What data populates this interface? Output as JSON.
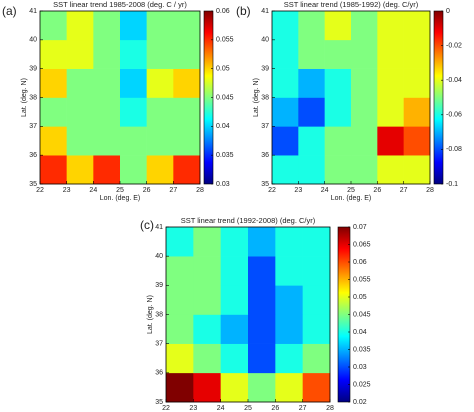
{
  "chart_data": [
    {
      "type": "heatmap",
      "panel_label": "(a)",
      "title": "SST linear trend 1985-2008 (deg. C / yr)",
      "xlabel": "Lon. (deg. E)",
      "ylabel": "Lat. (deg. N)",
      "x": [
        22.5,
        23.5,
        24.5,
        25.5,
        26.5,
        27.5
      ],
      "y": [
        35.5,
        36.5,
        37.5,
        38.5,
        39.5,
        40.5
      ],
      "z": [
        [
          0.055,
          0.05,
          0.055,
          0.045,
          0.05,
          0.055
        ],
        [
          0.05,
          0.045,
          0.045,
          0.045,
          0.045,
          0.045
        ],
        [
          0.045,
          0.045,
          0.045,
          0.042,
          0.045,
          0.045
        ],
        [
          0.05,
          0.045,
          0.045,
          0.04,
          0.048,
          0.05
        ],
        [
          0.048,
          0.048,
          0.045,
          0.042,
          0.045,
          0.045
        ],
        [
          0.045,
          0.048,
          0.045,
          0.04,
          0.045,
          0.045
        ]
      ],
      "xlim": [
        22,
        28
      ],
      "ylim": [
        35,
        41
      ],
      "xticks": [
        22,
        23,
        24,
        25,
        26,
        27,
        28
      ],
      "yticks": [
        35,
        36,
        37,
        38,
        39,
        40,
        41
      ],
      "clim": [
        0.03,
        0.06
      ],
      "cticks": [
        0.03,
        0.035,
        0.04,
        0.045,
        0.05,
        0.055,
        0.06
      ],
      "colormap": "jet"
    },
    {
      "type": "heatmap",
      "panel_label": "(b)",
      "title": "SST linear trend (1985-1992) (deg. C/yr)",
      "xlabel": "Lon. (deg. E)",
      "ylabel": "Lat. (deg. N)",
      "x": [
        22.5,
        23.5,
        24.5,
        25.5,
        26.5,
        27.5
      ],
      "y": [
        35.5,
        36.5,
        37.5,
        38.5,
        39.5,
        40.5
      ],
      "z": [
        [
          -0.06,
          -0.06,
          -0.05,
          -0.05,
          -0.04,
          -0.04
        ],
        [
          -0.08,
          -0.06,
          -0.05,
          -0.05,
          -0.01,
          -0.02
        ],
        [
          -0.07,
          -0.08,
          -0.06,
          -0.05,
          -0.04,
          -0.03
        ],
        [
          -0.06,
          -0.07,
          -0.06,
          -0.05,
          -0.04,
          -0.04
        ],
        [
          -0.06,
          -0.05,
          -0.05,
          -0.05,
          -0.04,
          -0.04
        ],
        [
          -0.06,
          -0.05,
          -0.04,
          -0.05,
          -0.04,
          -0.04
        ]
      ],
      "xlim": [
        22,
        28
      ],
      "ylim": [
        35,
        41
      ],
      "xticks": [
        22,
        23,
        24,
        25,
        26,
        27,
        28
      ],
      "yticks": [
        35,
        36,
        37,
        38,
        39,
        40,
        41
      ],
      "clim": [
        -0.1,
        0
      ],
      "cticks": [
        -0.1,
        -0.08,
        -0.06,
        -0.04,
        -0.02,
        0
      ],
      "colormap": "jet"
    },
    {
      "type": "heatmap",
      "panel_label": "(c)",
      "title": "SST linear trend (1992-2008) (deg. C/yr)",
      "xlabel": "Lon. (deg. E)",
      "ylabel": "Lat. (deg. N)",
      "x": [
        22.5,
        23.5,
        24.5,
        25.5,
        26.5,
        27.5
      ],
      "y": [
        35.5,
        36.5,
        37.5,
        38.5,
        39.5,
        40.5
      ],
      "z": [
        [
          0.07,
          0.065,
          0.05,
          0.045,
          0.05,
          0.06
        ],
        [
          0.05,
          0.045,
          0.04,
          0.03,
          0.04,
          0.045
        ],
        [
          0.045,
          0.04,
          0.035,
          0.03,
          0.035,
          0.04
        ],
        [
          0.045,
          0.045,
          0.04,
          0.03,
          0.035,
          0.04
        ],
        [
          0.045,
          0.045,
          0.04,
          0.03,
          0.04,
          0.04
        ],
        [
          0.04,
          0.045,
          0.04,
          0.035,
          0.04,
          0.04
        ]
      ],
      "xlim": [
        22,
        28
      ],
      "ylim": [
        35,
        41
      ],
      "xticks": [
        22,
        23,
        24,
        25,
        26,
        27,
        28
      ],
      "yticks": [
        35,
        36,
        37,
        38,
        39,
        40,
        41
      ],
      "clim": [
        0.02,
        0.07
      ],
      "cticks": [
        0.02,
        0.025,
        0.03,
        0.035,
        0.04,
        0.045,
        0.05,
        0.055,
        0.06,
        0.065,
        0.07
      ],
      "colormap": "jet"
    }
  ]
}
